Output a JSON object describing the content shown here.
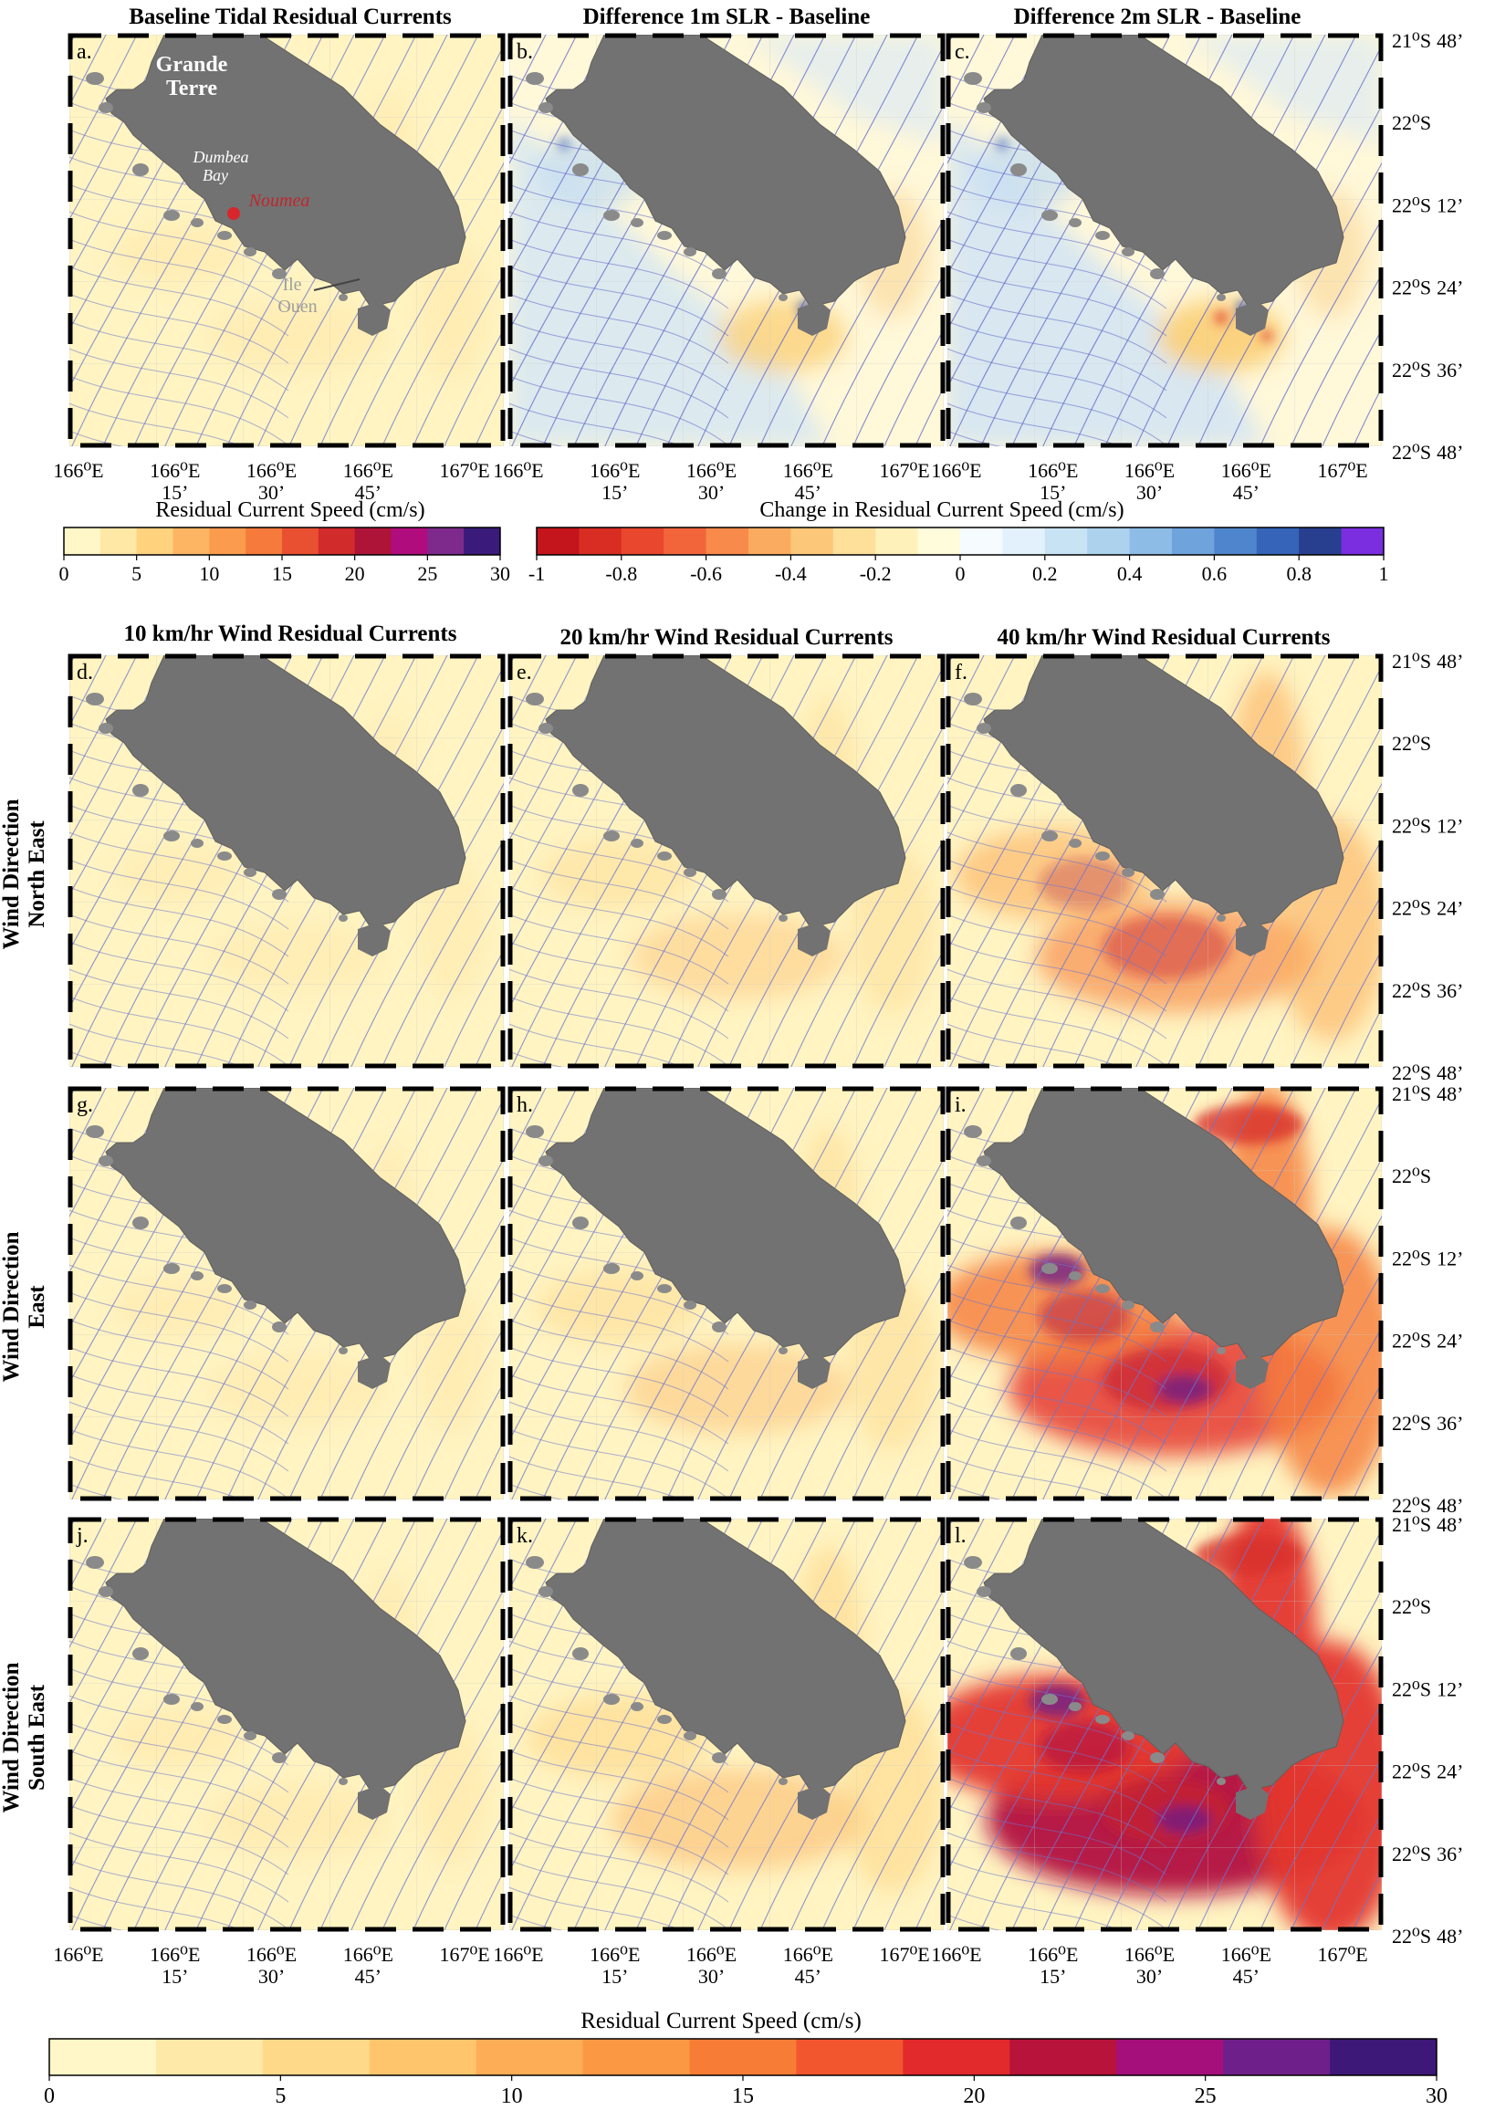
{
  "chart_data": {
    "type": "heatmap",
    "description_units": "Residual Current Speed (cm/s)",
    "panels": [
      {
        "label": "a.",
        "scenario": "Baseline Tidal Residual Currents",
        "mode": "speed",
        "intensity": 0.05
      },
      {
        "label": "b.",
        "scenario": "Difference 1m SLR - Baseline",
        "mode": "diff",
        "intensity": 0.3
      },
      {
        "label": "c.",
        "scenario": "Difference 2m SLR - Baseline",
        "mode": "diff",
        "intensity": 0.45
      },
      {
        "label": "d.",
        "scenario": "10 km/hr Wind, North East",
        "mode": "speed",
        "intensity": 0.03
      },
      {
        "label": "e.",
        "scenario": "20 km/hr Wind, North East",
        "mode": "speed",
        "intensity": 0.18
      },
      {
        "label": "f.",
        "scenario": "40 km/hr Wind, North East",
        "mode": "speed",
        "intensity": 0.42
      },
      {
        "label": "g.",
        "scenario": "10 km/hr Wind, East",
        "mode": "speed",
        "intensity": 0.04
      },
      {
        "label": "h.",
        "scenario": "20 km/hr Wind, East",
        "mode": "speed",
        "intensity": 0.22
      },
      {
        "label": "i.",
        "scenario": "40 km/hr Wind, East",
        "mode": "speed",
        "intensity": 0.62
      },
      {
        "label": "j.",
        "scenario": "10 km/hr Wind, South East",
        "mode": "speed",
        "intensity": 0.06
      },
      {
        "label": "k.",
        "scenario": "20 km/hr Wind, South East",
        "mode": "speed",
        "intensity": 0.32
      },
      {
        "label": "l.",
        "scenario": "40 km/hr Wind, South East",
        "mode": "speed",
        "intensity": 0.78
      }
    ],
    "column_titles": {
      "top": [
        "Baseline Tidal Residual Currents",
        "Difference 1m SLR - Baseline",
        "Difference 2m SLR - Baseline"
      ],
      "wind": [
        "10 km/hr Wind Residual Currents",
        "20 km/hr Wind Residual Currents",
        "40 km/hr Wind Residual Currents"
      ]
    },
    "row_labels": [
      [
        "Wind Direction",
        "North East"
      ],
      [
        "Wind Direction",
        "East"
      ],
      [
        "Wind Direction",
        "South East"
      ]
    ],
    "x_ticks": [
      [
        "166⁰E"
      ],
      [
        "166⁰E",
        "15’"
      ],
      [
        "166⁰E",
        "30’"
      ],
      [
        "166⁰E",
        "45’"
      ],
      [
        "167⁰E"
      ]
    ],
    "y_ticks": [
      [
        "21⁰S",
        "48’"
      ],
      [
        "22⁰S"
      ],
      [
        "22⁰S",
        "12’"
      ],
      [
        "22⁰S",
        "24’"
      ],
      [
        "22⁰S",
        "36’"
      ],
      [
        "22⁰S",
        "48’"
      ]
    ],
    "map_annotations": {
      "land_line1": "Grande",
      "land_line2": "Terre",
      "bay_line1": "Dumbea",
      "bay_line2": "Bay",
      "city": "Noumea",
      "island_line1": "Ile",
      "island_line2": "Ouen"
    },
    "colorbar_speed_small": {
      "title": "Residual Current Speed (cm/s)",
      "ticks": [
        "0",
        "5",
        "10",
        "15",
        "20",
        "25",
        "30"
      ],
      "range": [
        0,
        30
      ],
      "colors": [
        "#fff7c8",
        "#ffe7a6",
        "#ffd27e",
        "#fdb564",
        "#fb9b4e",
        "#f57a3b",
        "#e85031",
        "#d12b2b",
        "#ad1438",
        "#b10c7e",
        "#7d2a8c",
        "#3a1a7a"
      ]
    },
    "colorbar_diff": {
      "title": "Change in Residual Current Speed (cm/s)",
      "ticks": [
        "-1",
        "-0.8",
        "-0.6",
        "-0.4",
        "-0.2",
        "0",
        "0.2",
        "0.4",
        "0.6",
        "0.8",
        "1"
      ],
      "range": [
        -1,
        1
      ],
      "colors": [
        "#c4151c",
        "#d92d24",
        "#e9472e",
        "#f2653b",
        "#f88a4b",
        "#fbab5f",
        "#fdc77a",
        "#fee09a",
        "#fff1ba",
        "#fffcdc",
        "#f5fbff",
        "#e2f1fb",
        "#c8e3f4",
        "#acd2ee",
        "#8dbde6",
        "#6ea3dc",
        "#4f85cc",
        "#3564b8",
        "#283e8f",
        "#7a2ee0"
      ]
    },
    "colorbar_speed_large": {
      "title": "Residual Current Speed (cm/s)",
      "ticks": [
        "0",
        "5",
        "10",
        "15",
        "20",
        "25",
        "30"
      ],
      "range": [
        0,
        30
      ],
      "colors": [
        "#fff7c8",
        "#ffe9a8",
        "#ffd98a",
        "#ffc56d",
        "#fdad56",
        "#fb9844",
        "#f77d36",
        "#f2562f",
        "#e2292c",
        "#b8133a",
        "#a50f7c",
        "#6e1f8a",
        "#3d1878"
      ]
    }
  }
}
